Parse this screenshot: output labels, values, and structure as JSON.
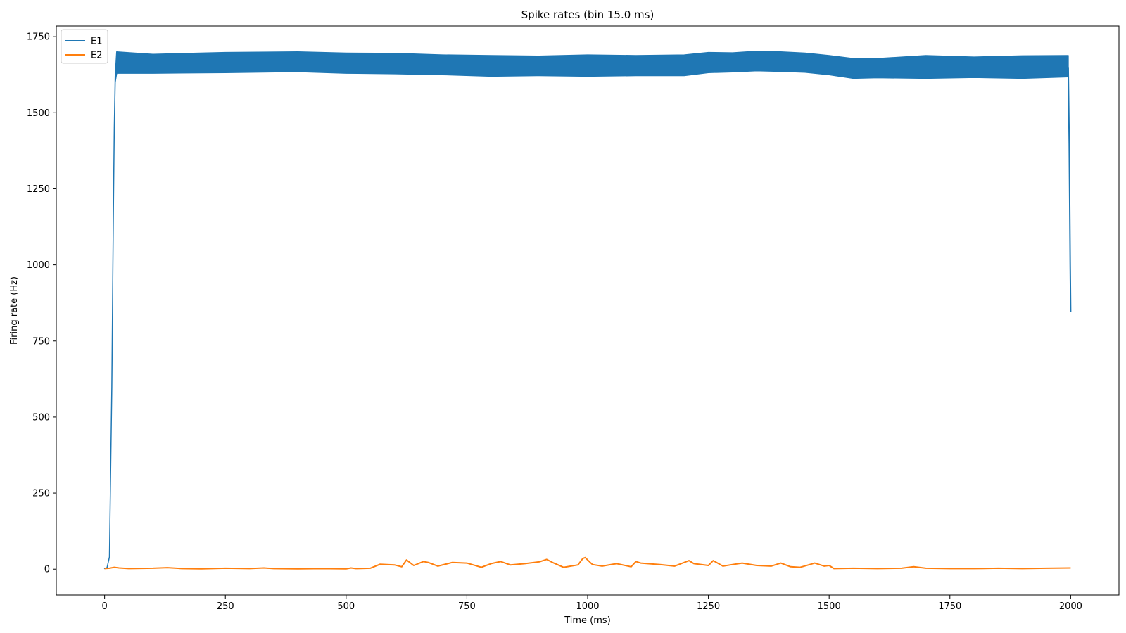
{
  "chart_data": {
    "type": "line",
    "title": "Spike rates (bin 15.0 ms)",
    "xlabel": "Time (ms)",
    "ylabel": "Firing rate (Hz)",
    "xlim": [
      -100,
      2100
    ],
    "ylim": [
      -85,
      1785
    ],
    "x_ticks": [
      0,
      250,
      500,
      750,
      1000,
      1250,
      1500,
      1750,
      2000
    ],
    "y_ticks": [
      0,
      250,
      500,
      750,
      1000,
      1250,
      1500,
      1750
    ],
    "x_tick_labels": [
      "0",
      "250",
      "500",
      "750",
      "1000",
      "1250",
      "1500",
      "1750",
      "2000"
    ],
    "y_tick_labels": [
      "0",
      "250",
      "500",
      "750",
      "1000",
      "1250",
      "1500",
      "1750"
    ],
    "grid": false,
    "legend": {
      "position": "top-left",
      "entries": [
        "E1",
        "E2"
      ]
    },
    "series": [
      {
        "name": "E1",
        "color": "#1f77b4",
        "style": "band",
        "x": [
          0,
          5,
          10,
          15,
          18,
          20,
          22,
          25,
          100,
          250,
          400,
          500,
          600,
          700,
          800,
          900,
          1000,
          1100,
          1200,
          1250,
          1300,
          1350,
          1400,
          1450,
          1500,
          1550,
          1600,
          1700,
          1800,
          1900,
          1995
        ],
        "upper": [
          2,
          5,
          40,
          600,
          1150,
          1450,
          1620,
          1700,
          1692,
          1698,
          1700,
          1696,
          1695,
          1690,
          1688,
          1686,
          1690,
          1688,
          1690,
          1698,
          1697,
          1702,
          1700,
          1696,
          1688,
          1678,
          1678,
          1688,
          1683,
          1687,
          1688
        ],
        "lower": [
          2,
          5,
          40,
          600,
          1150,
          1450,
          1600,
          1630,
          1630,
          1632,
          1635,
          1630,
          1628,
          1625,
          1620,
          1622,
          1620,
          1622,
          1622,
          1632,
          1634,
          1638,
          1636,
          1633,
          1625,
          1613,
          1615,
          1613,
          1616,
          1613,
          1618
        ],
        "tail_x": [
          1995,
          1997,
          1999,
          2000
        ],
        "tail_y": [
          1650,
          1400,
          1000,
          845
        ]
      },
      {
        "name": "E2",
        "color": "#ff7f0e",
        "style": "line",
        "x": [
          0,
          10,
          20,
          30,
          50,
          100,
          130,
          160,
          200,
          250,
          300,
          330,
          350,
          400,
          450,
          500,
          510,
          520,
          550,
          570,
          600,
          615,
          625,
          640,
          660,
          670,
          690,
          720,
          750,
          780,
          800,
          820,
          840,
          870,
          900,
          915,
          930,
          950,
          980,
          990,
          995,
          1000,
          1010,
          1030,
          1060,
          1090,
          1100,
          1110,
          1150,
          1180,
          1200,
          1210,
          1220,
          1250,
          1260,
          1280,
          1300,
          1320,
          1350,
          1380,
          1400,
          1420,
          1440,
          1460,
          1470,
          1490,
          1500,
          1510,
          1550,
          1600,
          1650,
          1675,
          1700,
          1750,
          1800,
          1850,
          1900,
          1950,
          2000
        ],
        "y": [
          2,
          3,
          6,
          4,
          2,
          3,
          5,
          2,
          1,
          3,
          2,
          4,
          2,
          1,
          2,
          1,
          4,
          2,
          3,
          16,
          14,
          8,
          30,
          12,
          25,
          22,
          10,
          22,
          20,
          6,
          18,
          25,
          14,
          18,
          24,
          32,
          20,
          6,
          14,
          35,
          38,
          30,
          15,
          10,
          18,
          8,
          25,
          20,
          15,
          10,
          22,
          28,
          18,
          12,
          28,
          10,
          15,
          20,
          12,
          10,
          20,
          8,
          6,
          15,
          20,
          10,
          12,
          2,
          3,
          2,
          3,
          8,
          3,
          2,
          2,
          3,
          2,
          3,
          4
        ]
      }
    ]
  }
}
